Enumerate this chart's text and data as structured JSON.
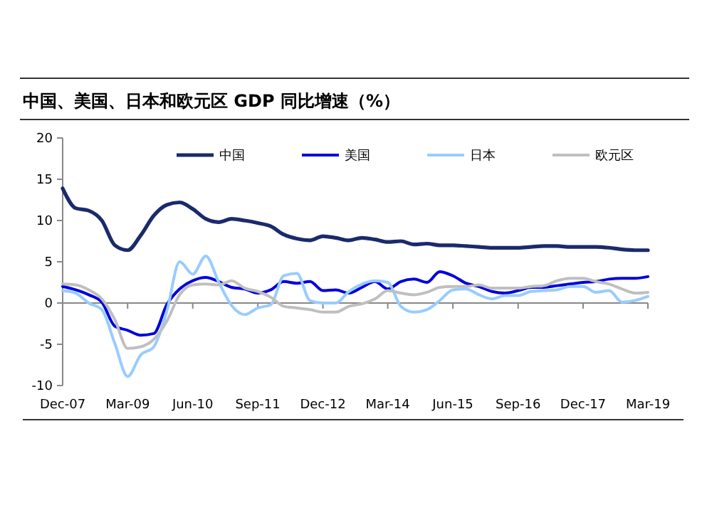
{
  "chart_data": {
    "type": "line",
    "title": "中国、美国、日本和欧元区 GDP 同比增速（%）",
    "x": [
      "2007-12",
      "2008-03",
      "2008-06",
      "2008-09",
      "2008-12",
      "2009-03",
      "2009-06",
      "2009-09",
      "2009-12",
      "2010-03",
      "2010-06",
      "2010-09",
      "2010-12",
      "2011-03",
      "2011-06",
      "2011-09",
      "2011-12",
      "2012-03",
      "2012-06",
      "2012-09",
      "2012-12",
      "2013-03",
      "2013-06",
      "2013-09",
      "2013-12",
      "2014-03",
      "2014-06",
      "2014-09",
      "2014-12",
      "2015-03",
      "2015-06",
      "2015-09",
      "2015-12",
      "2016-03",
      "2016-06",
      "2016-09",
      "2016-12",
      "2017-03",
      "2017-06",
      "2017-09",
      "2017-12",
      "2018-03",
      "2018-06",
      "2018-09",
      "2018-12",
      "2019-03"
    ],
    "series": [
      {
        "name": "中国",
        "color": "#1a2a6c",
        "values": [
          13.9,
          11.5,
          11.2,
          10,
          7,
          6.4,
          8.2,
          10.6,
          11.9,
          12.2,
          11.4,
          10.2,
          9.8,
          10.2,
          10,
          9.7,
          9.3,
          8.3,
          7.8,
          7.6,
          8.1,
          7.9,
          7.6,
          7.9,
          7.7,
          7.4,
          7.5,
          7.1,
          7.2,
          7,
          7,
          6.9,
          6.8,
          6.7,
          6.7,
          6.7,
          6.8,
          6.9,
          6.9,
          6.8,
          6.8,
          6.8,
          6.7,
          6.5,
          6.4,
          6.4
        ]
      },
      {
        "name": "美国",
        "color": "#0000dd",
        "values": [
          2,
          1.6,
          1,
          0.1,
          -2.8,
          -3.3,
          -3.9,
          -3.7,
          -0.2,
          1.7,
          2.7,
          3.1,
          2.6,
          1.9,
          1.7,
          1.2,
          1.6,
          2.6,
          2.4,
          2.6,
          1.5,
          1.6,
          1.2,
          1.9,
          2.6,
          1.7,
          2.6,
          2.9,
          2.5,
          3.8,
          3.3,
          2.4,
          2,
          1.4,
          1.2,
          1.5,
          1.9,
          1.9,
          2.1,
          2.3,
          2.5,
          2.6,
          2.9,
          3,
          3,
          3.2
        ]
      },
      {
        "name": "日本",
        "color": "#99ccff",
        "values": [
          1.5,
          1.2,
          0,
          -0.8,
          -4.9,
          -8.9,
          -6.3,
          -5.3,
          -1,
          5,
          3.5,
          5.7,
          2.5,
          -0.3,
          -1.4,
          -0.6,
          -0.2,
          3.3,
          3.6,
          0.3,
          0,
          0,
          1.4,
          2.3,
          2.7,
          2.5,
          -0.4,
          -1.1,
          -0.8,
          0.3,
          1.6,
          1.7,
          1,
          0.5,
          0.9,
          0.9,
          1.4,
          1.5,
          1.6,
          2,
          2,
          1.3,
          1.5,
          0.1,
          0.3,
          0.8
        ]
      },
      {
        "name": "欧元区",
        "color": "#bfbfbf",
        "values": [
          2.3,
          2.2,
          1.6,
          0.5,
          -2,
          -5.5,
          -5.3,
          -4.4,
          -2.2,
          1,
          2.2,
          2.3,
          2.2,
          2.7,
          1.8,
          1.4,
          0.7,
          -0.4,
          -0.6,
          -0.8,
          -1.1,
          -1.1,
          -0.4,
          -0.1,
          0.5,
          1.5,
          1.2,
          1,
          1.3,
          1.9,
          2,
          2,
          2.2,
          1.8,
          1.8,
          1.8,
          2,
          2.1,
          2.7,
          3,
          3,
          2.6,
          2.3,
          1.7,
          1.2,
          1.3
        ]
      }
    ],
    "xlim": [
      "2007-12",
      "2019-03"
    ],
    "xticks": [
      {
        "value": "2007-12",
        "label": "Dec-07"
      },
      {
        "value": "2009-03",
        "label": "Mar-09"
      },
      {
        "value": "2010-06",
        "label": "Jun-10"
      },
      {
        "value": "2011-09",
        "label": "Sep-11"
      },
      {
        "value": "2012-12",
        "label": "Dec-12"
      },
      {
        "value": "2014-03",
        "label": "Mar-14"
      },
      {
        "value": "2015-06",
        "label": "Jun-15"
      },
      {
        "value": "2016-09",
        "label": "Sep-16"
      },
      {
        "value": "2017-12",
        "label": "Dec-17"
      },
      {
        "value": "2019-03",
        "label": "Mar-19"
      }
    ],
    "ylim": [
      -10,
      20
    ],
    "yticks": [
      -10,
      -5,
      0,
      5,
      10,
      15,
      20
    ],
    "legend": "top",
    "marker": "none",
    "line_style": "solid"
  }
}
